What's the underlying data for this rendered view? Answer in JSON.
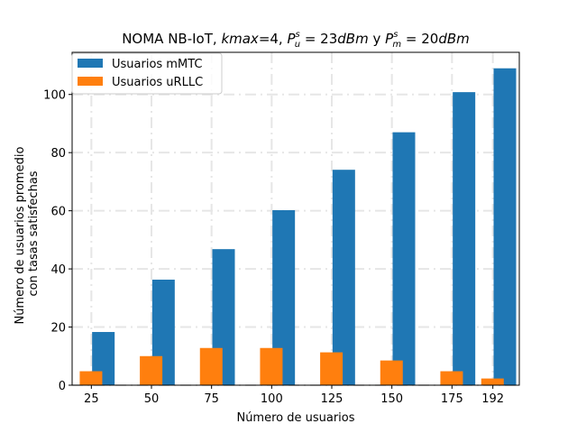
{
  "chart_data": {
    "type": "bar",
    "title": {
      "prefix": "NOMA NB-IoT, ",
      "kmax_var": "kmax",
      "kmax_eq": "=4, ",
      "pu_var": "P",
      "pu_sup": "s",
      "pu_sub": "u",
      "pu_eq": " = 23",
      "pu_unit": "dBm",
      "joiner": " y ",
      "pm_var": "P",
      "pm_sup": "s",
      "pm_sub": "m",
      "pm_eq": " = 20",
      "pm_unit": "dBm"
    },
    "xlabel": "Número de usuarios",
    "ylabel": [
      "Número de usuarios promedio",
      "con tasas satisfechas"
    ],
    "x_values": [
      25,
      50,
      75,
      100,
      125,
      150,
      175,
      192
    ],
    "x_tick_labels": [
      "25",
      "50",
      "75",
      "100",
      "125",
      "150",
      "175",
      "192"
    ],
    "xlim": [
      17,
      203
    ],
    "ylim": [
      0,
      114.5
    ],
    "y_ticks": [
      0,
      20,
      40,
      60,
      80,
      100
    ],
    "grid": true,
    "legend_position": "upper-left",
    "series": [
      {
        "name": "Usuarios mMTC",
        "color": "#1f77b4",
        "offset": 5,
        "values": [
          18.3,
          36.3,
          46.8,
          60.2,
          74.1,
          87.0,
          100.8,
          109.0
        ]
      },
      {
        "name": "Usuarios uRLLC",
        "color": "#ff7f0e",
        "offset": -0.15,
        "values": [
          4.8,
          10.0,
          12.8,
          12.8,
          11.3,
          8.5,
          4.8,
          2.3
        ]
      }
    ]
  }
}
